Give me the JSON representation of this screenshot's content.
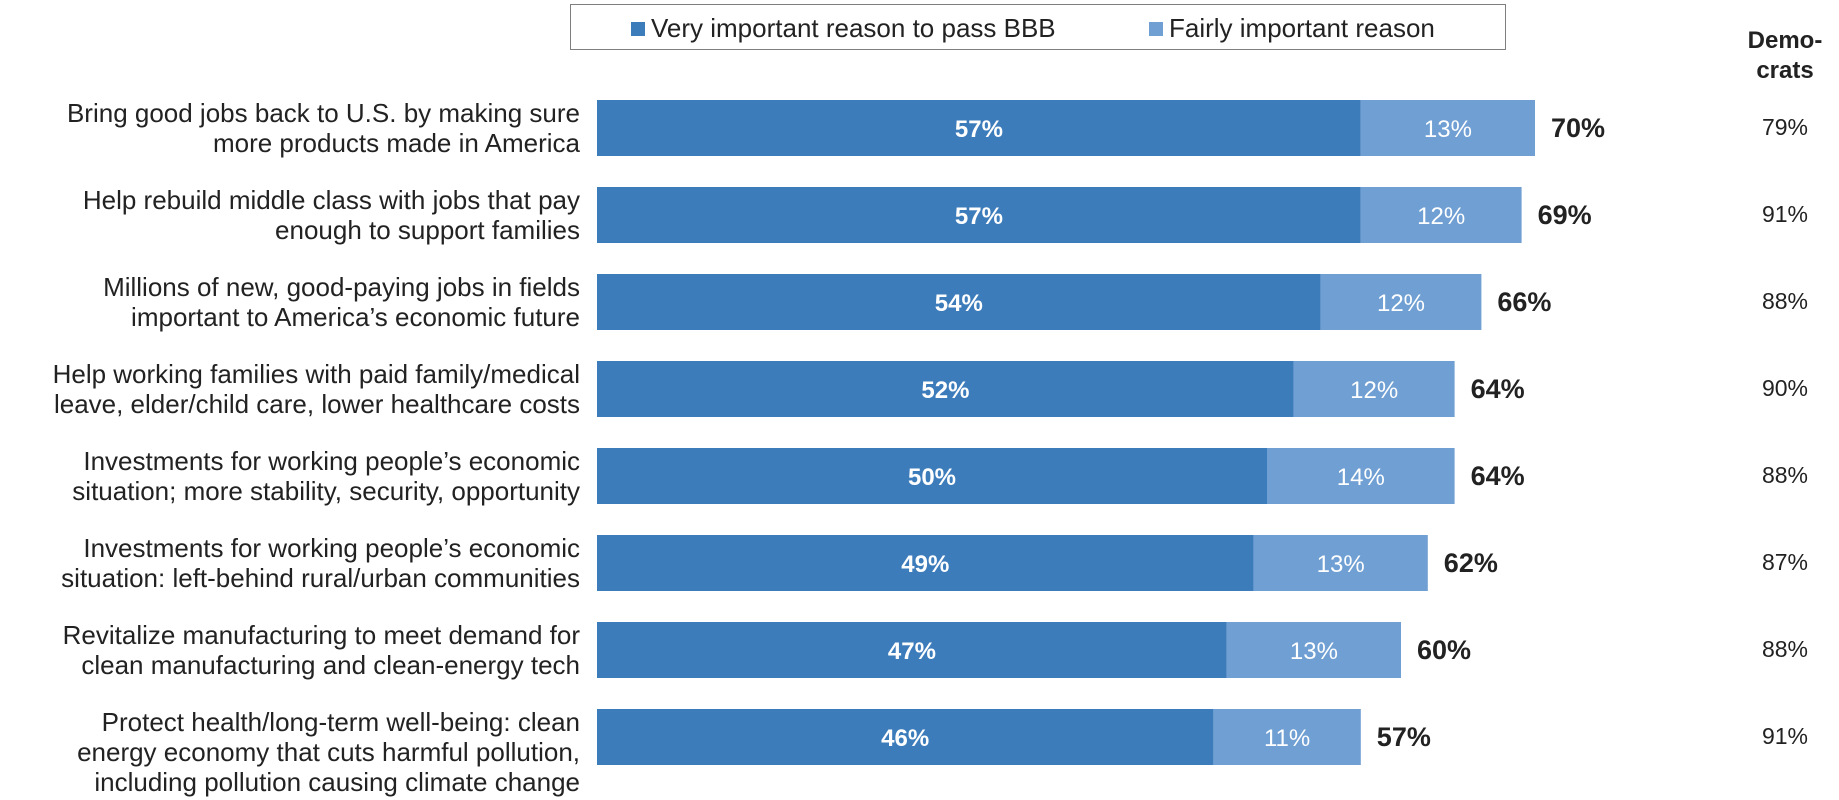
{
  "legend": {
    "very_label": "Very important reason to pass BBB",
    "fairly_label": "Fairly important reason"
  },
  "dem_header": {
    "line1": "Demo-",
    "line2": "crats"
  },
  "colors": {
    "very": "#3d7cbb",
    "fairly": "#6f9fd3",
    "total_label": "#222222"
  },
  "chart_data": {
    "type": "bar",
    "orientation": "horizontal",
    "stacked": true,
    "categories": [
      [
        "Bring good jobs back to U.S. by making sure",
        "more products made in America"
      ],
      [
        "Help rebuild middle class with jobs that pay",
        "enough to support families"
      ],
      [
        "Millions of new, good-paying jobs in fields",
        "important to America’s economic future"
      ],
      [
        "Help working families with paid family/medical",
        "leave, elder/child care, lower healthcare costs"
      ],
      [
        "Investments for working people’s economic",
        "situation; more stability, security, opportunity"
      ],
      [
        "Investments for working people’s economic",
        "situation: left-behind rural/urban communities"
      ],
      [
        "Revitalize manufacturing to meet demand for",
        "clean manufacturing and clean-energy tech"
      ],
      [
        "Protect health/long-term well-being: clean",
        "energy economy that cuts harmful pollution,",
        "including pollution causing climate change"
      ]
    ],
    "series": [
      {
        "name": "Very important reason to pass BBB",
        "values": [
          57,
          57,
          54,
          52,
          50,
          49,
          47,
          46
        ]
      },
      {
        "name": "Fairly important reason",
        "values": [
          13,
          12,
          12,
          12,
          14,
          13,
          13,
          11
        ]
      }
    ],
    "totals": [
      70,
      69,
      66,
      64,
      64,
      62,
      60,
      57
    ],
    "democrats": [
      79,
      91,
      88,
      90,
      88,
      87,
      88,
      91
    ],
    "value_format": "percent",
    "legend_position": "top",
    "grid": false
  }
}
